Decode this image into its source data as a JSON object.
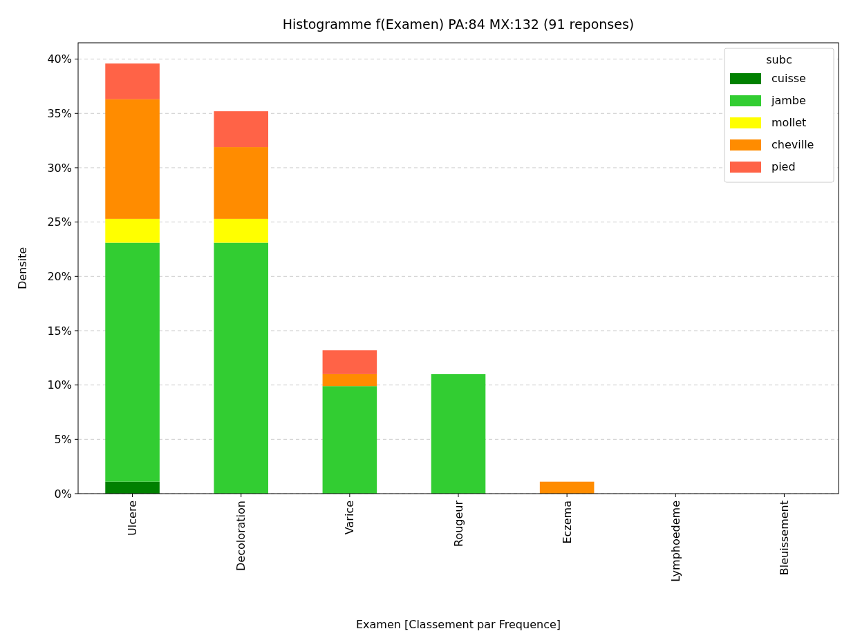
{
  "chart_data": {
    "type": "bar",
    "title": "Histogramme f(Examen) PA:84      MX:132 (91 reponses)",
    "xlabel": "Examen [Classement par Frequence]",
    "ylabel": "Densite",
    "legend_title": "subc",
    "categories": [
      "Ulcere",
      "Decoloration",
      "Varice",
      "Rougeur",
      "Eczema",
      "Lymphoedeme",
      "Bleuissement"
    ],
    "stacked": true,
    "series": [
      {
        "name": "cuisse",
        "color": "#008000",
        "values": [
          1.1,
          0,
          0,
          0,
          0,
          0,
          0
        ]
      },
      {
        "name": "jambe",
        "color": "#32cd32",
        "values": [
          22.0,
          23.1,
          9.9,
          11.0,
          0,
          0,
          0
        ]
      },
      {
        "name": "mollet",
        "color": "#ffff00",
        "values": [
          2.2,
          2.2,
          0,
          0,
          0,
          0,
          0
        ]
      },
      {
        "name": "cheville",
        "color": "#ff8c00",
        "values": [
          11.0,
          6.6,
          1.1,
          0,
          1.1,
          0,
          0
        ]
      },
      {
        "name": "pied",
        "color": "#ff6347",
        "values": [
          3.3,
          3.3,
          2.2,
          0,
          0,
          0,
          0
        ]
      }
    ],
    "ylim": [
      0,
      41.5
    ],
    "yticks": [
      {
        "value": 0,
        "label": "0%"
      },
      {
        "value": 5,
        "label": "5%"
      },
      {
        "value": 10,
        "label": "10%"
      },
      {
        "value": 15,
        "label": "15%"
      },
      {
        "value": 20,
        "label": "20%"
      },
      {
        "value": 25,
        "label": "25%"
      },
      {
        "value": 30,
        "label": "30%"
      },
      {
        "value": 35,
        "label": "35%"
      },
      {
        "value": 40,
        "label": "40%"
      }
    ],
    "grid": "y",
    "legend": "top right"
  }
}
